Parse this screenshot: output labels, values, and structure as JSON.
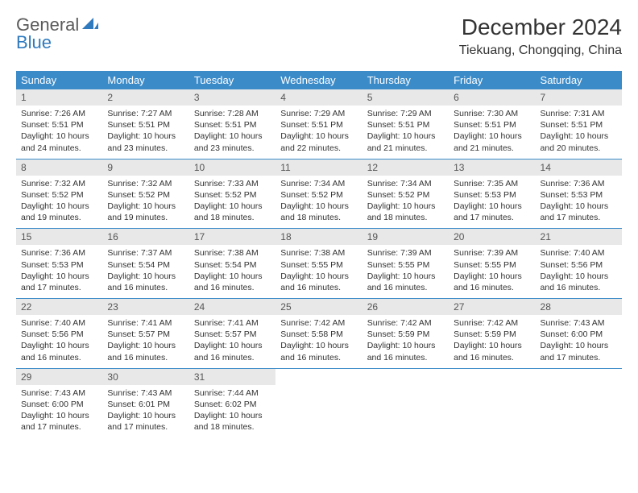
{
  "logo": {
    "word1": "General",
    "word2": "Blue"
  },
  "title": "December 2024",
  "location": "Tiekuang, Chongqing, China",
  "colors": {
    "header_bg": "#3b8bc9",
    "header_text": "#ffffff",
    "daynum_bg": "#e8e8e8",
    "row_divider": "#3b8bc9",
    "body_text": "#333333",
    "logo_gray": "#5a5a5a",
    "logo_blue": "#2f7abf"
  },
  "weekdays": [
    "Sunday",
    "Monday",
    "Tuesday",
    "Wednesday",
    "Thursday",
    "Friday",
    "Saturday"
  ],
  "weeks": [
    [
      {
        "n": "1",
        "sr": "7:26 AM",
        "ss": "5:51 PM",
        "dl": "10 hours and 24 minutes."
      },
      {
        "n": "2",
        "sr": "7:27 AM",
        "ss": "5:51 PM",
        "dl": "10 hours and 23 minutes."
      },
      {
        "n": "3",
        "sr": "7:28 AM",
        "ss": "5:51 PM",
        "dl": "10 hours and 23 minutes."
      },
      {
        "n": "4",
        "sr": "7:29 AM",
        "ss": "5:51 PM",
        "dl": "10 hours and 22 minutes."
      },
      {
        "n": "5",
        "sr": "7:29 AM",
        "ss": "5:51 PM",
        "dl": "10 hours and 21 minutes."
      },
      {
        "n": "6",
        "sr": "7:30 AM",
        "ss": "5:51 PM",
        "dl": "10 hours and 21 minutes."
      },
      {
        "n": "7",
        "sr": "7:31 AM",
        "ss": "5:51 PM",
        "dl": "10 hours and 20 minutes."
      }
    ],
    [
      {
        "n": "8",
        "sr": "7:32 AM",
        "ss": "5:52 PM",
        "dl": "10 hours and 19 minutes."
      },
      {
        "n": "9",
        "sr": "7:32 AM",
        "ss": "5:52 PM",
        "dl": "10 hours and 19 minutes."
      },
      {
        "n": "10",
        "sr": "7:33 AM",
        "ss": "5:52 PM",
        "dl": "10 hours and 18 minutes."
      },
      {
        "n": "11",
        "sr": "7:34 AM",
        "ss": "5:52 PM",
        "dl": "10 hours and 18 minutes."
      },
      {
        "n": "12",
        "sr": "7:34 AM",
        "ss": "5:52 PM",
        "dl": "10 hours and 18 minutes."
      },
      {
        "n": "13",
        "sr": "7:35 AM",
        "ss": "5:53 PM",
        "dl": "10 hours and 17 minutes."
      },
      {
        "n": "14",
        "sr": "7:36 AM",
        "ss": "5:53 PM",
        "dl": "10 hours and 17 minutes."
      }
    ],
    [
      {
        "n": "15",
        "sr": "7:36 AM",
        "ss": "5:53 PM",
        "dl": "10 hours and 17 minutes."
      },
      {
        "n": "16",
        "sr": "7:37 AM",
        "ss": "5:54 PM",
        "dl": "10 hours and 16 minutes."
      },
      {
        "n": "17",
        "sr": "7:38 AM",
        "ss": "5:54 PM",
        "dl": "10 hours and 16 minutes."
      },
      {
        "n": "18",
        "sr": "7:38 AM",
        "ss": "5:55 PM",
        "dl": "10 hours and 16 minutes."
      },
      {
        "n": "19",
        "sr": "7:39 AM",
        "ss": "5:55 PM",
        "dl": "10 hours and 16 minutes."
      },
      {
        "n": "20",
        "sr": "7:39 AM",
        "ss": "5:55 PM",
        "dl": "10 hours and 16 minutes."
      },
      {
        "n": "21",
        "sr": "7:40 AM",
        "ss": "5:56 PM",
        "dl": "10 hours and 16 minutes."
      }
    ],
    [
      {
        "n": "22",
        "sr": "7:40 AM",
        "ss": "5:56 PM",
        "dl": "10 hours and 16 minutes."
      },
      {
        "n": "23",
        "sr": "7:41 AM",
        "ss": "5:57 PM",
        "dl": "10 hours and 16 minutes."
      },
      {
        "n": "24",
        "sr": "7:41 AM",
        "ss": "5:57 PM",
        "dl": "10 hours and 16 minutes."
      },
      {
        "n": "25",
        "sr": "7:42 AM",
        "ss": "5:58 PM",
        "dl": "10 hours and 16 minutes."
      },
      {
        "n": "26",
        "sr": "7:42 AM",
        "ss": "5:59 PM",
        "dl": "10 hours and 16 minutes."
      },
      {
        "n": "27",
        "sr": "7:42 AM",
        "ss": "5:59 PM",
        "dl": "10 hours and 16 minutes."
      },
      {
        "n": "28",
        "sr": "7:43 AM",
        "ss": "6:00 PM",
        "dl": "10 hours and 17 minutes."
      }
    ],
    [
      {
        "n": "29",
        "sr": "7:43 AM",
        "ss": "6:00 PM",
        "dl": "10 hours and 17 minutes."
      },
      {
        "n": "30",
        "sr": "7:43 AM",
        "ss": "6:01 PM",
        "dl": "10 hours and 17 minutes."
      },
      {
        "n": "31",
        "sr": "7:44 AM",
        "ss": "6:02 PM",
        "dl": "10 hours and 18 minutes."
      },
      null,
      null,
      null,
      null
    ]
  ],
  "labels": {
    "sunrise": "Sunrise:",
    "sunset": "Sunset:",
    "daylight": "Daylight:"
  }
}
